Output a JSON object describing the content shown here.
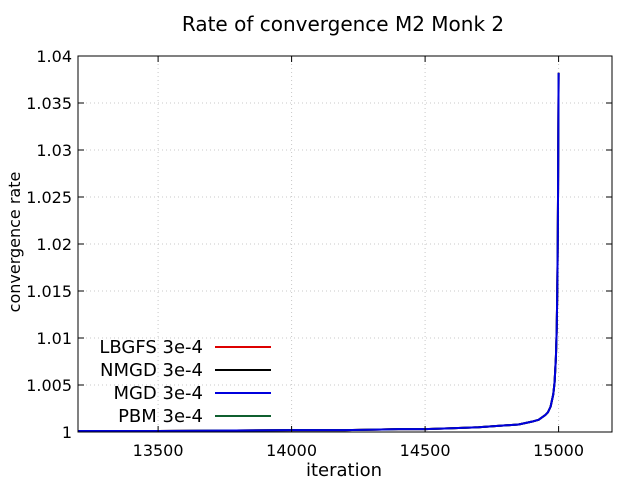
{
  "chart_data": {
    "type": "line",
    "title": "Rate of convergence M2 Monk 2",
    "xlabel": "iteration",
    "ylabel": "convergence rate",
    "xlim": [
      13200,
      15200
    ],
    "ylim": [
      1,
      1.04
    ],
    "xticks": [
      {
        "value": 13500,
        "label": "13500"
      },
      {
        "value": 14000,
        "label": "14000"
      },
      {
        "value": 14500,
        "label": "14500"
      },
      {
        "value": 15000,
        "label": "15000"
      }
    ],
    "yticks": [
      {
        "value": 1,
        "label": "1"
      },
      {
        "value": 1.005,
        "label": "1.005"
      },
      {
        "value": 1.01,
        "label": "1.01"
      },
      {
        "value": 1.015,
        "label": "1.015"
      },
      {
        "value": 1.02,
        "label": "1.02"
      },
      {
        "value": 1.025,
        "label": "1.025"
      },
      {
        "value": 1.03,
        "label": "1.03"
      },
      {
        "value": 1.035,
        "label": "1.035"
      },
      {
        "value": 1.04,
        "label": "1.04"
      }
    ],
    "grid": true,
    "legend_position": "bottom-left",
    "series": [
      {
        "name": "LBGFS 3e-4",
        "color": "#dd0000",
        "x": [
          13200,
          13500,
          14000,
          14200,
          14400,
          14500,
          14600,
          14700,
          14800,
          14850,
          14900,
          14925,
          14950,
          14960,
          14970,
          14980,
          14985,
          14990,
          14993,
          14995,
          14997,
          14998,
          14999,
          15000
        ],
        "y": [
          1.0001,
          1.0001,
          1.0002,
          1.0002,
          1.0003,
          1.0003,
          1.0004,
          1.0005,
          1.0007,
          1.0008,
          1.0011,
          1.0013,
          1.0018,
          1.0021,
          1.0027,
          1.004,
          1.0053,
          1.008,
          1.011,
          1.015,
          1.021,
          1.026,
          1.032,
          1.0382
        ]
      },
      {
        "name": "NMGD 3e-4",
        "color": "#000000",
        "x": [
          13200,
          13500,
          14000,
          14200,
          14400,
          14500,
          14600,
          14700,
          14800,
          14850,
          14900,
          14925,
          14950,
          14960,
          14970,
          14980,
          14985,
          14990,
          14993,
          14995,
          14997,
          14998,
          14999,
          15000
        ],
        "y": [
          1.0001,
          1.0001,
          1.0002,
          1.0002,
          1.0003,
          1.0003,
          1.0004,
          1.0005,
          1.0007,
          1.0008,
          1.0011,
          1.0013,
          1.0018,
          1.0021,
          1.0027,
          1.004,
          1.0053,
          1.008,
          1.011,
          1.015,
          1.021,
          1.026,
          1.032,
          1.0382
        ]
      },
      {
        "name": "MGD 3e-4",
        "color": "#0000dd",
        "x": [
          13200,
          13500,
          14000,
          14200,
          14400,
          14500,
          14600,
          14700,
          14800,
          14850,
          14900,
          14925,
          14950,
          14960,
          14970,
          14980,
          14985,
          14990,
          14993,
          14995,
          14997,
          14998,
          14999,
          15000
        ],
        "y": [
          1.0001,
          1.0001,
          1.0002,
          1.0002,
          1.0003,
          1.0003,
          1.0004,
          1.0005,
          1.0007,
          1.0008,
          1.0011,
          1.0013,
          1.0018,
          1.0021,
          1.0027,
          1.004,
          1.0053,
          1.008,
          1.011,
          1.015,
          1.021,
          1.026,
          1.032,
          1.0382
        ]
      },
      {
        "name": "PBM 3e-4",
        "color": "#0f5f2f",
        "x": [
          13200,
          13500,
          14000,
          14200,
          14400,
          14500,
          14600,
          14700,
          14800,
          14850,
          14900,
          14925,
          14950,
          14960,
          14970,
          14980,
          14985,
          14990,
          14993,
          14995,
          14997,
          14998,
          14999,
          15000
        ],
        "y": [
          1.0001,
          1.0001,
          1.0002,
          1.0002,
          1.0003,
          1.0003,
          1.0004,
          1.0005,
          1.0007,
          1.0008,
          1.0011,
          1.0013,
          1.0018,
          1.0021,
          1.0027,
          1.004,
          1.0053,
          1.008,
          1.011,
          1.015,
          1.021,
          1.026,
          1.032,
          1.0382
        ]
      }
    ],
    "draw_order": [
      0,
      1,
      3,
      2
    ]
  }
}
